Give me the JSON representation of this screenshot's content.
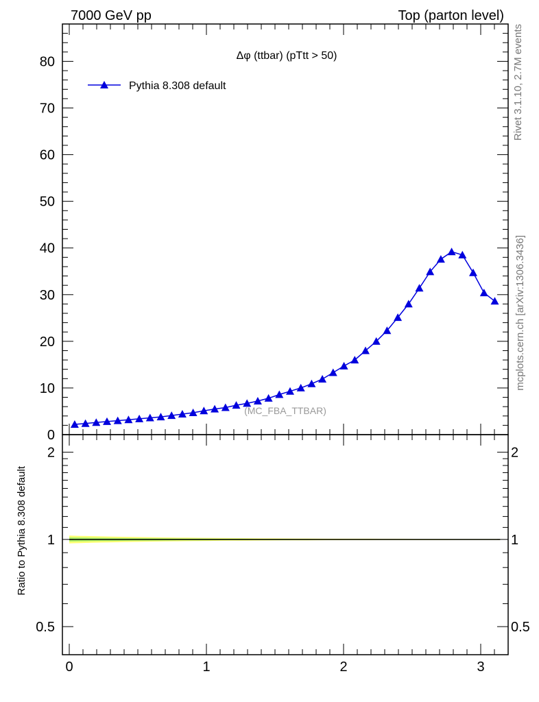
{
  "header": {
    "left": "7000 GeV pp",
    "right": "Top (parton level)"
  },
  "side_labels": {
    "rivet": "Rivet 3.1.10,  2.7M events",
    "mcplots": "mcplots.cern.ch [arXiv:1306.3436]"
  },
  "chart_data": [
    {
      "type": "line",
      "title": "Δφ (ttbar) (pTtt > 50)",
      "watermark": "(MC_FBA_TTBAR)",
      "xlabel": "",
      "ylabel": "",
      "xlim": [
        -0.05,
        3.2
      ],
      "ylim": [
        0,
        88
      ],
      "y_ticks": [
        0,
        10,
        20,
        30,
        40,
        50,
        60,
        70,
        80
      ],
      "y_tick_labels": [
        "0",
        "10",
        "20",
        "30",
        "40",
        "50",
        "60",
        "70",
        "80"
      ],
      "legend": {
        "position": "top-left"
      },
      "series": [
        {
          "name": "Pythia 8.308 default",
          "color": "#0000dd",
          "marker": "triangle-up",
          "x": [
            0.0393,
            0.1178,
            0.1963,
            0.2749,
            0.3534,
            0.432,
            0.5105,
            0.589,
            0.6676,
            0.7461,
            0.8247,
            0.9032,
            0.9817,
            1.0603,
            1.1388,
            1.2174,
            1.2959,
            1.3744,
            1.453,
            1.5315,
            1.6101,
            1.6886,
            1.7671,
            1.8457,
            1.9242,
            2.0028,
            2.0813,
            2.1598,
            2.2384,
            2.3169,
            2.3955,
            2.474,
            2.5525,
            2.6311,
            2.7096,
            2.7882,
            2.8667,
            2.9452,
            3.0238,
            3.1023
          ],
          "values": [
            2.2,
            2.4,
            2.6,
            2.8,
            3.0,
            3.2,
            3.4,
            3.6,
            3.8,
            4.1,
            4.4,
            4.7,
            5.1,
            5.5,
            5.8,
            6.3,
            6.7,
            7.2,
            7.8,
            8.6,
            9.3,
            10.0,
            10.9,
            11.9,
            13.3,
            14.7,
            16.0,
            18.0,
            20.0,
            22.3,
            25.1,
            28.0,
            31.4,
            34.9,
            37.6,
            39.2,
            38.5,
            34.7,
            30.4,
            28.6
          ]
        }
      ]
    },
    {
      "type": "line",
      "ylabel": "Ratio to Pythia 8.308 default",
      "xlabel": "",
      "xlim": [
        -0.05,
        3.2
      ],
      "ylim": [
        0.4,
        2.3
      ],
      "y_scale": "log",
      "y_ticks": [
        0.5,
        1,
        2
      ],
      "y_tick_labels": [
        "0.5",
        "1",
        "2"
      ],
      "x_ticks": [
        0,
        1,
        2,
        3
      ],
      "x_tick_labels": [
        "0",
        "1",
        "2",
        "3"
      ],
      "band_color_outer": "#ffff66",
      "band_color_inner": "#99ee66",
      "series": [
        {
          "name": "Pythia 8.308 default",
          "color": "#000000",
          "x": [
            0.0,
            3.1416
          ],
          "values": [
            1.0,
            1.0
          ]
        }
      ]
    }
  ]
}
